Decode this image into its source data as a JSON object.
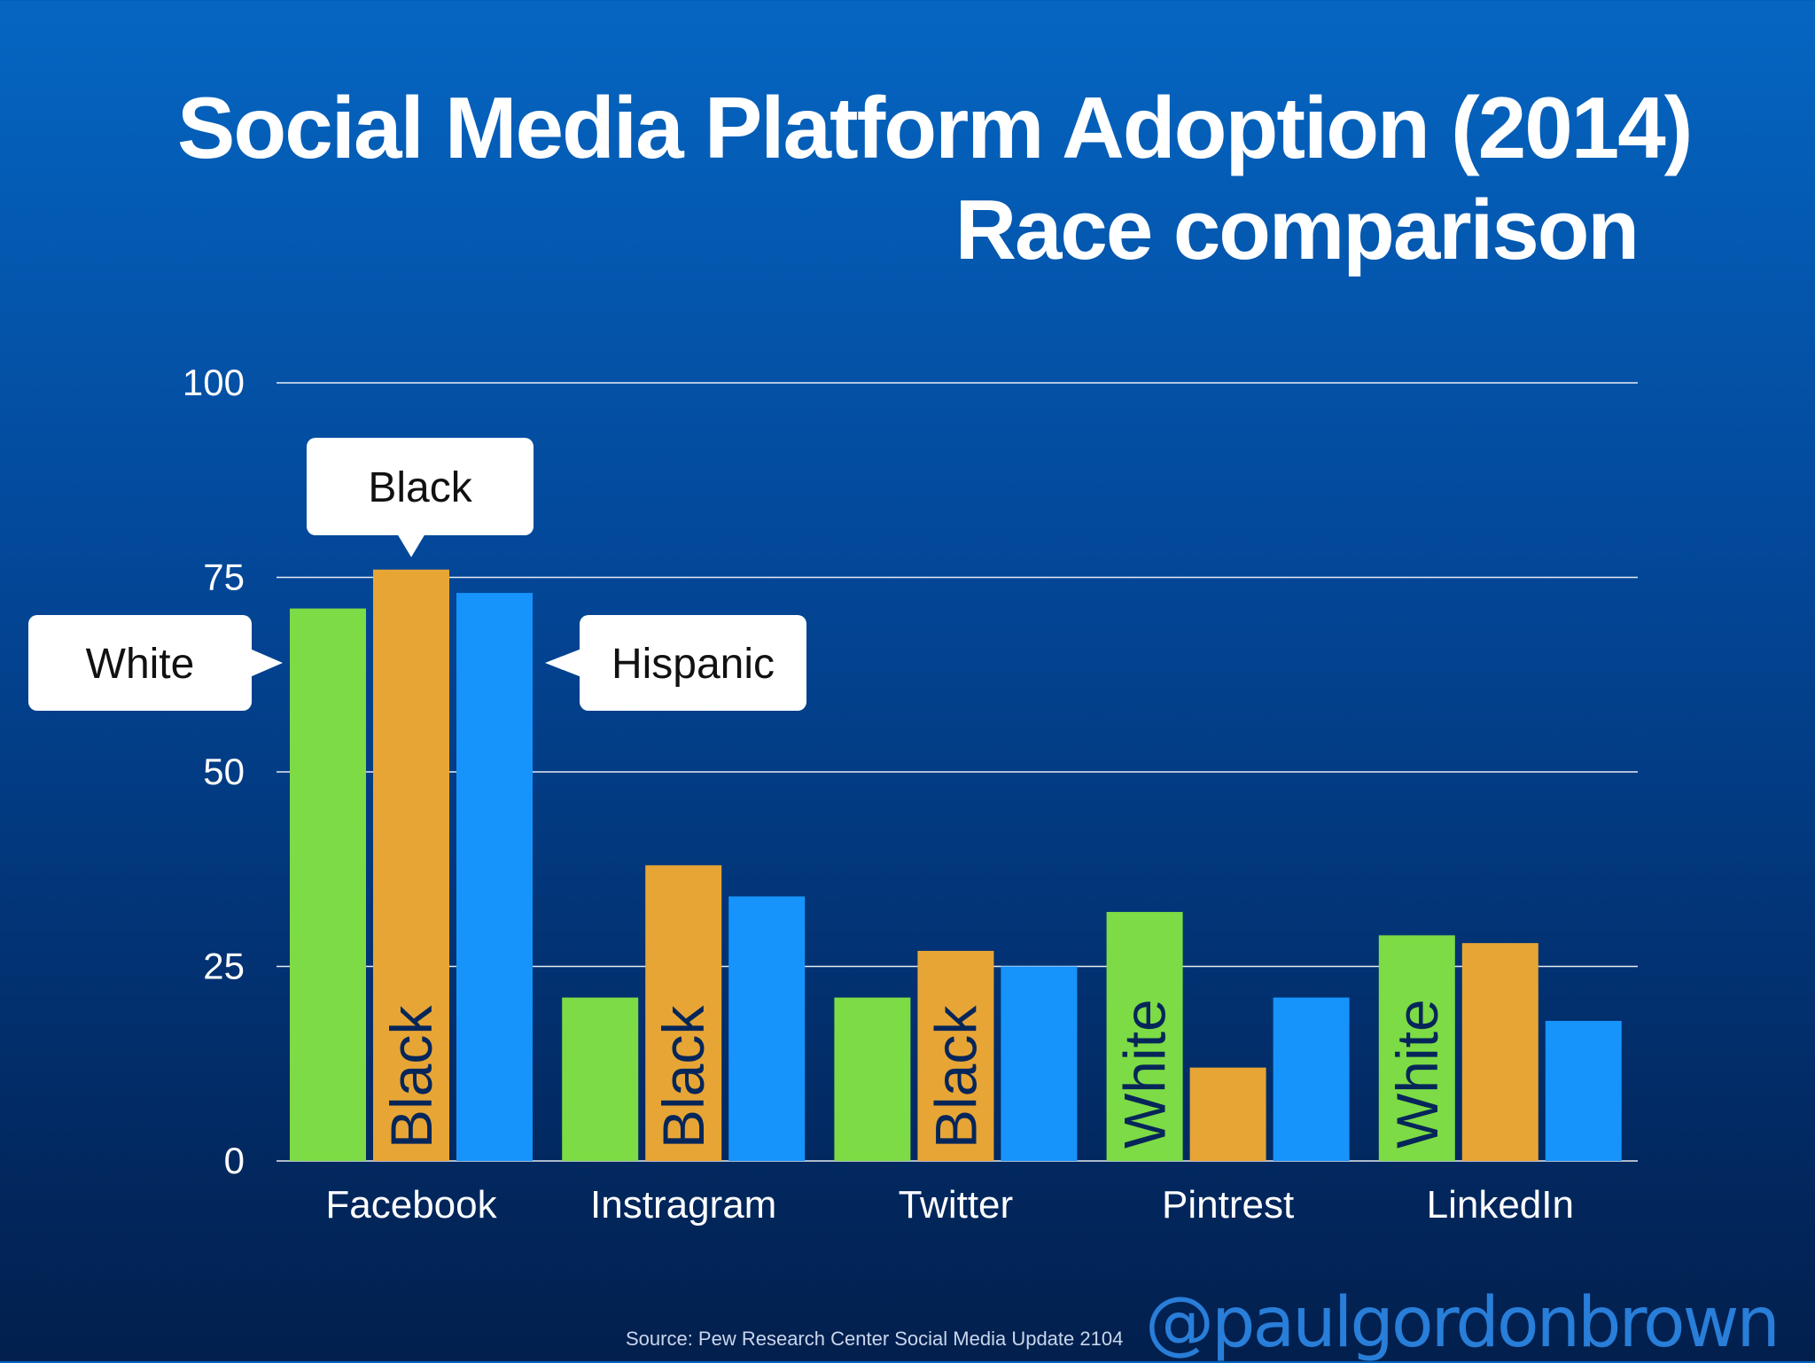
{
  "chart_data": {
    "type": "bar",
    "title": "Social Media Platform Adoption (2014)",
    "subtitle": "Race comparison",
    "categories": [
      "Facebook",
      "Instragram",
      "Twitter",
      "Pintrest",
      "LinkedIn"
    ],
    "series": [
      {
        "name": "White",
        "color": "#7ddb45",
        "values": [
          71,
          21,
          21,
          32,
          29
        ]
      },
      {
        "name": "Black",
        "color": "#e7a535",
        "values": [
          76,
          38,
          27,
          12,
          28
        ]
      },
      {
        "name": "Hispanic",
        "color": "#1694fb",
        "values": [
          73,
          34,
          25,
          21,
          18
        ]
      }
    ],
    "yticks": [
      0,
      25,
      50,
      75,
      100
    ],
    "ylim": [
      0,
      100
    ],
    "grid": true,
    "bar_labels": [
      {
        "category": "Facebook",
        "series": "Black",
        "text": "Black"
      },
      {
        "category": "Instragram",
        "series": "Black",
        "text": "Black"
      },
      {
        "category": "Twitter",
        "series": "Black",
        "text": "Black"
      },
      {
        "category": "Pintrest",
        "series": "White",
        "text": "White"
      },
      {
        "category": "LinkedIn",
        "series": "White",
        "text": "White"
      }
    ],
    "callouts": [
      {
        "text": "White",
        "target": "White"
      },
      {
        "text": "Black",
        "target": "Black"
      },
      {
        "text": "Hispanic",
        "target": "Hispanic"
      }
    ]
  },
  "footer": {
    "source": "Source: Pew Research Center Social Media Update 2104",
    "handle": "@paulgordonbrown"
  }
}
